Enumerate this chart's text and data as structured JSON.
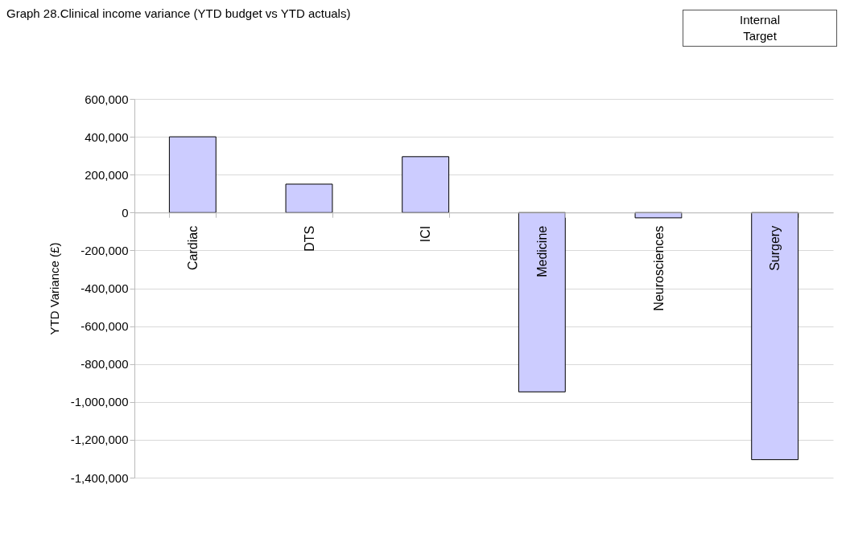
{
  "chart_data": {
    "type": "bar",
    "title": "Graph 28.Clinical income variance (YTD budget vs YTD actuals)",
    "ylabel": "YTD Variance (£)",
    "categories": [
      "Cardiac",
      "DTS",
      "ICI",
      "Medicine",
      "Neurosciences",
      "Surgery"
    ],
    "values": [
      400000,
      150000,
      295000,
      -947000,
      -28000,
      -1305000
    ],
    "color": "#ccccff",
    "ylim": [
      -1400000,
      600000
    ],
    "yticks": [
      {
        "value": -1400000,
        "label": "-1,400,000"
      },
      {
        "value": -1200000,
        "label": "-1,200,000"
      },
      {
        "value": -1000000,
        "label": "-1,000,000"
      },
      {
        "value": -800000,
        "label": "-800,000"
      },
      {
        "value": -600000,
        "label": "-600,000"
      },
      {
        "value": -400000,
        "label": "-400,000"
      },
      {
        "value": -200000,
        "label": "-200,000"
      },
      0,
      {
        "value": 200000,
        "label": "200,000"
      },
      {
        "value": 400000,
        "label": "400,000"
      },
      {
        "value": 600000,
        "label": "600,000"
      }
    ],
    "grid": "y",
    "annotations": [
      "Internal Target"
    ]
  }
}
